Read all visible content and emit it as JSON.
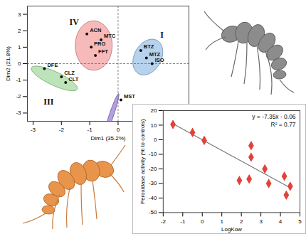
{
  "chart_data": [
    {
      "type": "scatter",
      "x_label": "Dim1 (35.2%)",
      "y_label": "Dim2 (21.8%)",
      "xlim": [
        -3.2,
        2.5
      ],
      "ylim": [
        -3.5,
        3.5
      ],
      "xticks": [
        -3,
        -2,
        -1,
        0,
        1,
        2
      ],
      "yticks": [
        -3,
        -2,
        -1,
        0,
        1,
        2,
        3
      ],
      "reference_lines": {
        "x": [
          0
        ],
        "y": [
          0
        ]
      },
      "series": [
        {
          "name": "I",
          "color": "#9dc3e6",
          "name_x": 1.55,
          "name_y": 1.75,
          "labels": [
            "BTZ",
            "MTZ",
            "ISO"
          ],
          "x": [
            0.8,
            1.0,
            1.2
          ],
          "y": [
            0.8,
            0.35,
            0.0
          ],
          "ellipse": {
            "cx": 1.05,
            "cy": 0.4,
            "rx": 0.5,
            "ry": 1.1,
            "angle": -10
          }
        },
        {
          "name": "III",
          "color": "#a6dba0",
          "name_x": -2.45,
          "name_y": -2.3,
          "labels": [
            "DFE",
            "CLZ",
            "CLT"
          ],
          "x": [
            -2.6,
            -2.0,
            -1.85
          ],
          "y": [
            -0.3,
            -0.8,
            -1.15
          ],
          "ellipse": {
            "cx": -2.25,
            "cy": -0.9,
            "rx": 1.05,
            "ry": 0.35,
            "angle": -42
          }
        },
        {
          "name": "IV",
          "color": "#f4a3a3",
          "name_x": -1.55,
          "name_y": 2.5,
          "labels": [
            "ACN",
            "MTC",
            "PRO",
            "FFT"
          ],
          "x": [
            -1.1,
            -0.6,
            -0.95,
            -0.8
          ],
          "y": [
            1.8,
            1.45,
            1.0,
            0.5
          ],
          "ellipse": {
            "cx": -0.86,
            "cy": 1.1,
            "rx": 0.65,
            "ry": 1.5,
            "angle": 0
          }
        },
        {
          "color": "#9b7fd4",
          "labels": [
            "MST"
          ],
          "x": [
            0.1
          ],
          "y": [
            -2.2
          ],
          "ellipse": {
            "cx": -0.25,
            "cy": -3.2,
            "rx": 1.4,
            "ry": 0.08,
            "angle": 79
          }
        }
      ]
    },
    {
      "type": "scatter",
      "x_label": "LogKow",
      "y_label": "Peroxidase activity (% to controls)",
      "xlim": [
        -2,
        5
      ],
      "ylim": [
        -50,
        20
      ],
      "xticks": [
        -2,
        -1,
        0,
        1,
        2,
        3,
        4,
        5
      ],
      "yticks": [
        -50,
        -40,
        -30,
        -20,
        -10,
        0,
        10,
        20
      ],
      "x": [
        -1.5,
        -0.5,
        0.1,
        1.9,
        2.4,
        2.5,
        2.5,
        3.2,
        3.4,
        4.2,
        4.3,
        4.5
      ],
      "values": [
        10.5,
        5,
        -0.5,
        -28,
        -27,
        -4,
        -12,
        -20,
        -30,
        -25,
        -38,
        -32
      ],
      "color": "#e0433a",
      "marker": "diamond",
      "fit": {
        "x": [
          -1.5,
          4.5
        ],
        "y": [
          11,
          -33
        ]
      },
      "annotations": [
        "y = -7.35x - 0.06",
        "R² = 0.77"
      ]
    }
  ]
}
